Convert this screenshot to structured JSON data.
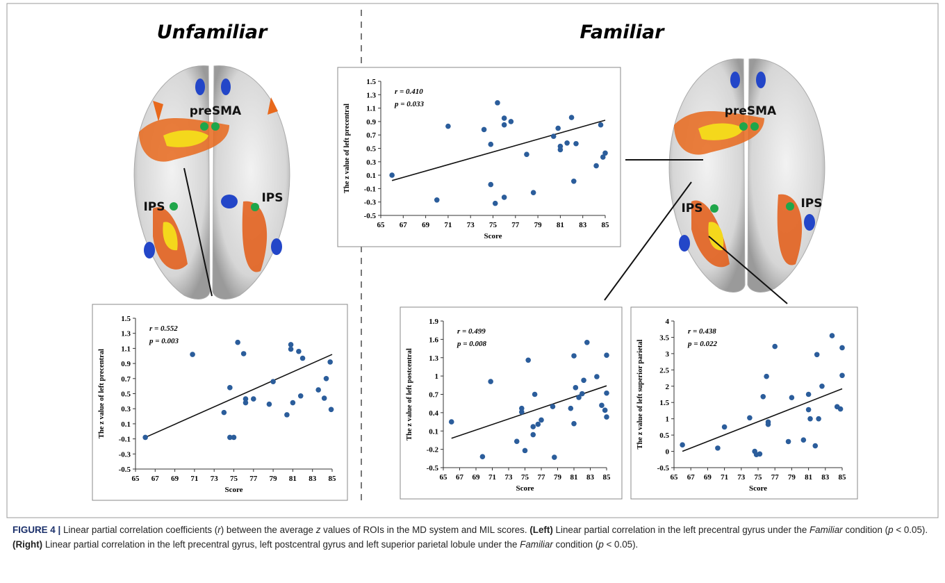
{
  "titles": {
    "left": "Unfamiliar",
    "right": "Familiar"
  },
  "brains": [
    {
      "labels": [
        "preSMA",
        "IPS",
        "IPS"
      ]
    },
    {
      "labels": [
        "preSMA",
        "IPS",
        "IPS"
      ]
    }
  ],
  "chart_data": [
    {
      "type": "scatter",
      "ylabel": "The z value of left precentral",
      "xlabel": "Score",
      "annotations": [
        "r = 0.552",
        "p = 0.003"
      ],
      "color": "#2b5d9b",
      "x": [
        66,
        70.8,
        74,
        74.6,
        74.6,
        75,
        75.4,
        76,
        76.2,
        76.2,
        77,
        78.6,
        79,
        80.4,
        80.8,
        80.8,
        81,
        81.6,
        81.8,
        82,
        83.6,
        84.2,
        84.4,
        84.8,
        84.9
      ],
      "y": [
        -0.08,
        1.02,
        0.25,
        0.58,
        -0.08,
        -0.08,
        1.18,
        1.03,
        0.38,
        0.43,
        0.43,
        0.36,
        0.66,
        0.22,
        1.15,
        1.09,
        0.38,
        1.06,
        0.47,
        0.97,
        0.55,
        0.44,
        0.7,
        0.92,
        0.29
      ],
      "trendline": {
        "x": [
          66,
          85
        ],
        "y": [
          -0.08,
          1.02
        ]
      },
      "xlim": [
        65,
        85
      ],
      "xticks": [
        65,
        67,
        69,
        71,
        73,
        75,
        77,
        79,
        81,
        83,
        85
      ],
      "ylim": [
        -0.5,
        1.5
      ],
      "yticks": [
        -0.5,
        -0.3,
        -0.1,
        0.1,
        0.3,
        0.5,
        0.7,
        0.9,
        1.1,
        1.3,
        1.5
      ]
    },
    {
      "type": "scatter",
      "ylabel": "The z value of left precentral",
      "xlabel": "Score",
      "annotations": [
        "r = 0.410",
        "p = 0.033"
      ],
      "color": "#2b5d9b",
      "x": [
        66,
        70,
        71,
        74.2,
        74.8,
        74.8,
        75.2,
        75.4,
        76,
        76,
        76,
        76.6,
        78,
        78.6,
        80.4,
        80.8,
        81,
        81,
        81.6,
        82,
        82.2,
        82.4,
        84.2,
        84.6,
        84.8,
        85
      ],
      "y": [
        0.1,
        -0.27,
        0.83,
        0.78,
        0.56,
        -0.04,
        -0.32,
        1.18,
        0.95,
        0.85,
        -0.23,
        0.9,
        0.41,
        -0.16,
        0.68,
        0.8,
        0.53,
        0.48,
        0.58,
        0.96,
        0.01,
        0.57,
        0.24,
        0.85,
        0.37,
        0.43
      ],
      "trendline": {
        "x": [
          66,
          85
        ],
        "y": [
          0.02,
          0.92
        ]
      },
      "xlim": [
        65,
        85
      ],
      "xticks": [
        65,
        67,
        69,
        71,
        73,
        75,
        77,
        79,
        81,
        83,
        85
      ],
      "ylim": [
        -0.5,
        1.5
      ],
      "yticks": [
        -0.5,
        -0.3,
        -0.1,
        0.1,
        0.3,
        0.5,
        0.7,
        0.9,
        1.1,
        1.3,
        1.5
      ]
    },
    {
      "type": "scatter",
      "ylabel": "The z value of left postcentral",
      "xlabel": "Score",
      "annotations": [
        "r = 0.499",
        "p = 0.008"
      ],
      "color": "#2b5d9b",
      "x": [
        66,
        69.8,
        70.8,
        74,
        74.6,
        74.6,
        75,
        75.4,
        76,
        76,
        76.2,
        76.6,
        77,
        78.4,
        78.6,
        80.6,
        81,
        81,
        81.2,
        81.6,
        82,
        82.2,
        82.6,
        83.8,
        84.4,
        84.8,
        85,
        85,
        85
      ],
      "y": [
        0.25,
        -0.32,
        0.91,
        -0.07,
        0.47,
        0.41,
        -0.22,
        1.26,
        0.04,
        0.17,
        0.7,
        0.21,
        0.28,
        0.5,
        -0.33,
        0.47,
        1.33,
        0.22,
        0.81,
        0.65,
        0.71,
        0.93,
        1.55,
        0.99,
        0.52,
        0.44,
        0.72,
        0.33,
        1.34
      ],
      "trendline": {
        "x": [
          66,
          85
        ],
        "y": [
          -0.02,
          0.84
        ]
      },
      "xlim": [
        65,
        85
      ],
      "xticks": [
        65,
        67,
        69,
        71,
        73,
        75,
        77,
        79,
        81,
        83,
        85
      ],
      "ylim": [
        -0.5,
        1.9
      ],
      "yticks": [
        -0.5,
        -0.2,
        0.1,
        0.4,
        0.7,
        1,
        1.3,
        1.6,
        1.9
      ]
    },
    {
      "type": "scatter",
      "ylabel": "The z value of left superior parietal",
      "xlabel": "Score",
      "annotations": [
        "r = 0.438",
        "p = 0.022"
      ],
      "color": "#2b5d9b",
      "x": [
        66,
        70.2,
        71,
        74,
        74.6,
        74.8,
        75.2,
        75.6,
        76,
        76.2,
        76.2,
        77,
        78.6,
        79,
        80.4,
        81,
        81,
        81.2,
        81.8,
        82,
        82.2,
        82.6,
        83.8,
        84.4,
        84.8,
        85,
        85
      ],
      "y": [
        0.2,
        0.1,
        0.75,
        1.03,
        0,
        -0.1,
        -0.08,
        1.68,
        2.3,
        0.9,
        0.83,
        3.22,
        0.3,
        1.65,
        0.35,
        1.28,
        1.75,
        1,
        0.17,
        2.97,
        1,
        2,
        3.55,
        1.37,
        1.3,
        3.18,
        2.33
      ],
      "trendline": {
        "x": [
          66,
          85
        ],
        "y": [
          0,
          1.92
        ]
      },
      "xlim": [
        65,
        85
      ],
      "xticks": [
        65,
        67,
        69,
        71,
        73,
        75,
        77,
        79,
        81,
        83,
        85
      ],
      "ylim": [
        -0.5,
        4
      ],
      "yticks": [
        -0.5,
        0,
        0.5,
        1,
        1.5,
        2,
        2.5,
        3,
        3.5,
        4
      ]
    }
  ],
  "caption": [
    "FIGURE 4 |",
    " Linear partial correlation coefficients (",
    "r",
    ") between the average ",
    "z",
    " values of ROIs in the MD system and MIL scores. ",
    "(Left)",
    " Linear partial correlation in the left precentral gyrus under the ",
    "Familiar",
    " condition (",
    "p",
    " < 0.05). ",
    "(Right)",
    " Linear partial correlation in the left precentral gyrus, left postcentral gyrus and left superior parietal lobule under the ",
    "Familiar",
    " condition (",
    "p",
    " < 0.05)."
  ]
}
